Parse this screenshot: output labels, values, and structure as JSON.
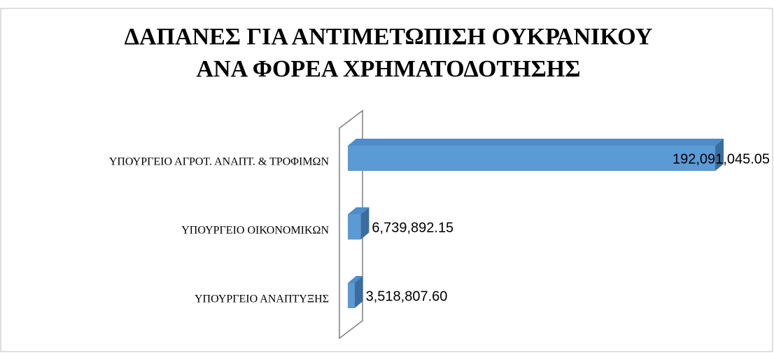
{
  "chart_data": {
    "type": "bar3d_horizontal",
    "title": [
      "ΔΑΠΑΝΕΣ ΓΙΑ ΑΝΤΙΜΕΤΩΠΙΣΗ ΟΥΚΡΑΝΙΚΟΥ",
      "ΑΝΑ ΦΟΡΕΑ ΧΡΗΜΑΤΟΔΟΤΗΣΗΣ"
    ],
    "categories": [
      "ΥΠΟΥΡΓΕΙΟ ΑΓΡΟΤ. ΑΝΑΠΤ. & ΤΡΟΦΙΜΩΝ",
      "ΥΠΟΥΡΓΕΙΟ ΟΙΚΟΝΟΜΙΚΩΝ",
      "ΥΠΟΥΡΓΕΙΟ ΑΝΑΠΤΥΞΗΣ"
    ],
    "values": [
      192091045.05,
      6739892.15,
      3518807.6
    ],
    "value_labels": [
      "192,091,045.05",
      "6,739,892.15",
      "3,518,807.60"
    ],
    "color": "#5b9bd5"
  }
}
